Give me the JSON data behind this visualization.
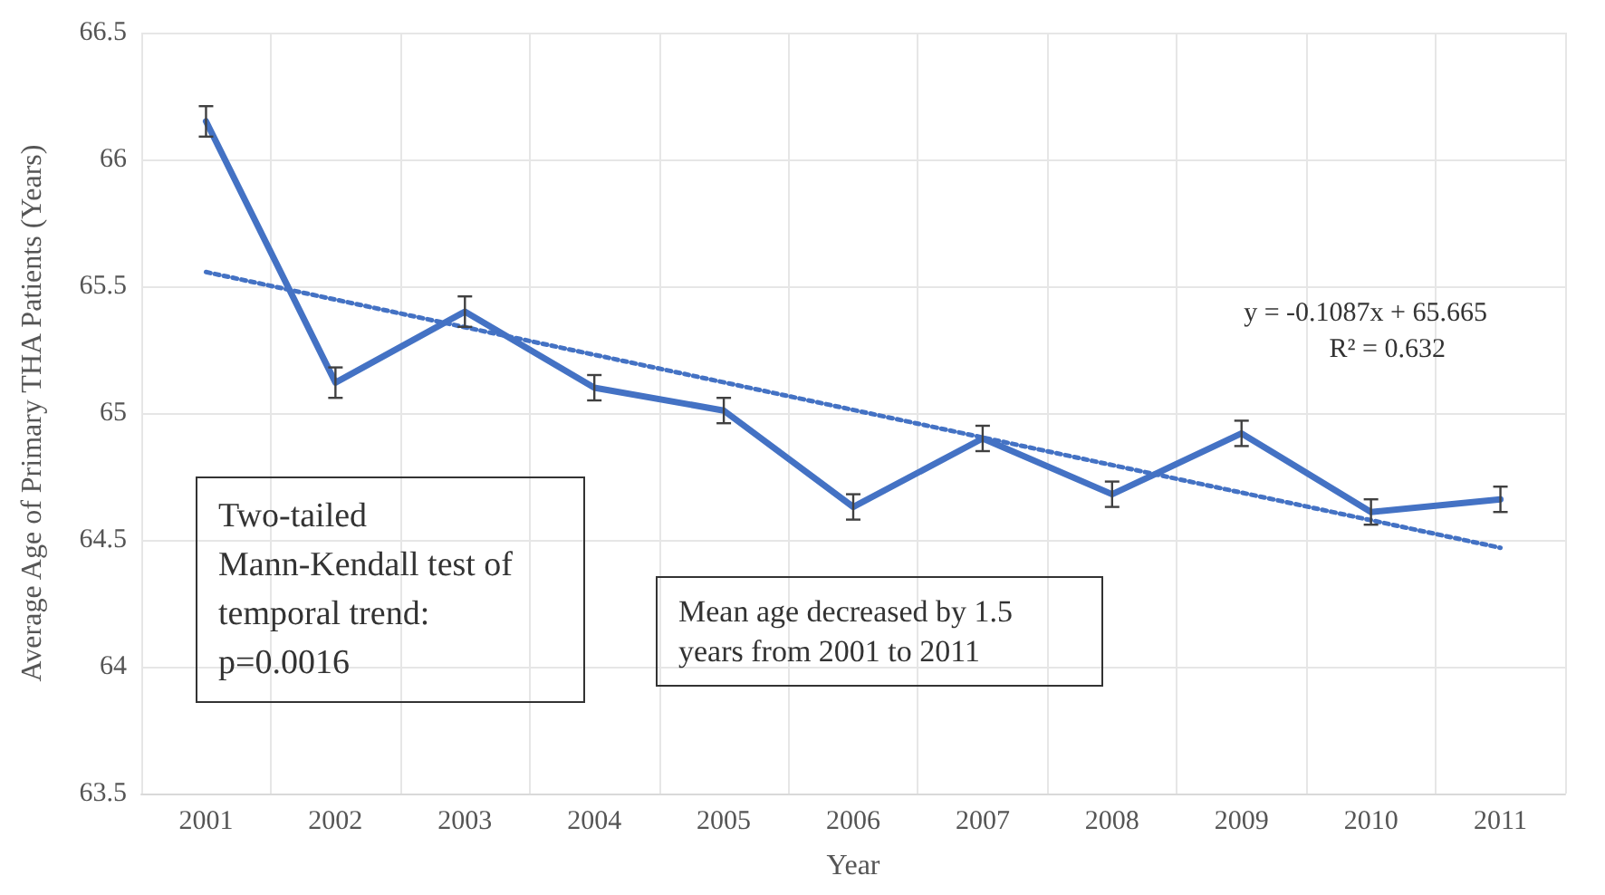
{
  "chart_data": {
    "type": "line",
    "xlabel": "Year",
    "ylabel": "Average Age of Primary THA Patients (Years)",
    "categories": [
      "2001",
      "2002",
      "2003",
      "2004",
      "2005",
      "2006",
      "2007",
      "2008",
      "2009",
      "2010",
      "2011"
    ],
    "series": [
      {
        "color": "#4472c4",
        "values": [
          66.15,
          65.12,
          65.4,
          65.1,
          65.01,
          64.63,
          64.9,
          64.68,
          64.92,
          64.61,
          64.66
        ],
        "errors": [
          0.06,
          0.06,
          0.06,
          0.05,
          0.05,
          0.05,
          0.05,
          0.05,
          0.05,
          0.05,
          0.05
        ],
        "line_style": "solid"
      },
      {
        "type": "line",
        "color": "#4472c4",
        "values": [
          65.556,
          null,
          null,
          null,
          null,
          null,
          null,
          null,
          null,
          null,
          64.469
        ],
        "line_style": "dotted"
      }
    ],
    "ylim": [
      63.5,
      66.5
    ],
    "yticks": [
      63.5,
      64,
      64.5,
      65,
      65.5,
      66,
      66.5
    ],
    "grid": true,
    "marker": "none",
    "annotations": [
      "y = -0.1087x + 65.665",
      "R² = 0.632",
      "Two-tailed Mann-Kendall test of temporal trend: p=0.0016",
      "Mean age decreased by 1.5 years from 2001 to 2011"
    ]
  }
}
